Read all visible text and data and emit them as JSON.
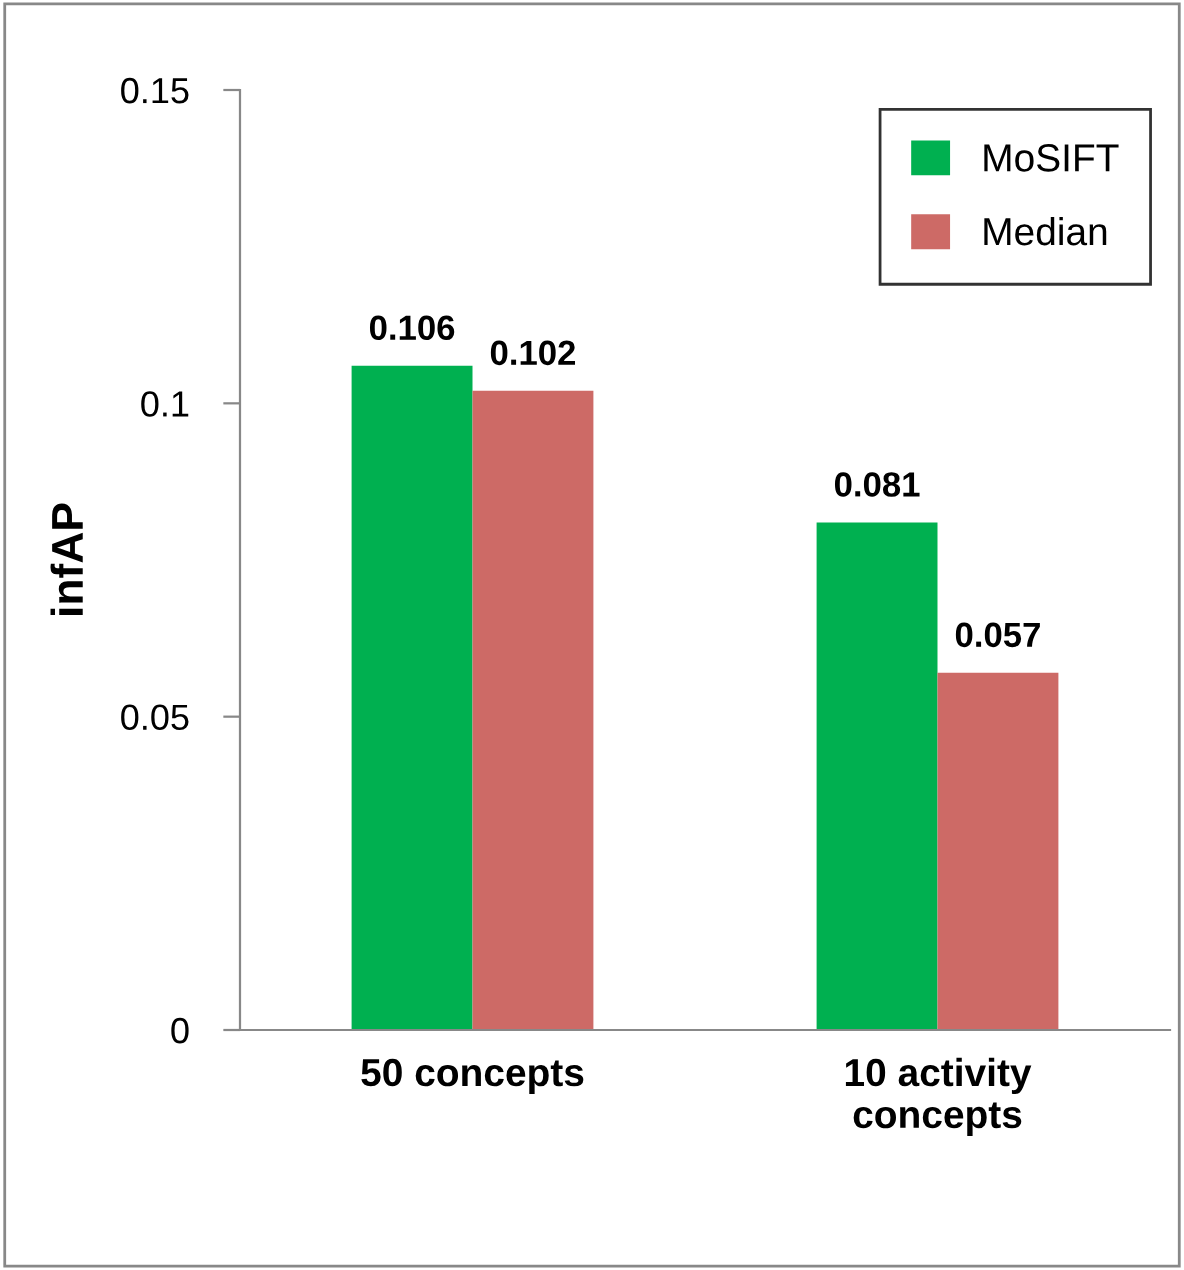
{
  "chart_data": {
    "type": "bar",
    "ylabel": "infAP",
    "categories": [
      "50 concepts",
      "10 activity\nconcepts"
    ],
    "series": [
      {
        "name": "MoSIFT",
        "color": "#00b050",
        "values": [
          0.106,
          0.081
        ]
      },
      {
        "name": "Median",
        "color": "#cd6a66",
        "values": [
          0.102,
          0.057
        ]
      }
    ],
    "ylim": [
      0,
      0.15
    ],
    "yticks": [
      0,
      {
        "value": 0.05,
        "label": "0.05"
      },
      {
        "value": 0.1,
        "label": "0.1"
      },
      {
        "value": 0.15,
        "label": "0.15"
      }
    ],
    "grid": false,
    "legend": "top right",
    "data_labels": true
  }
}
